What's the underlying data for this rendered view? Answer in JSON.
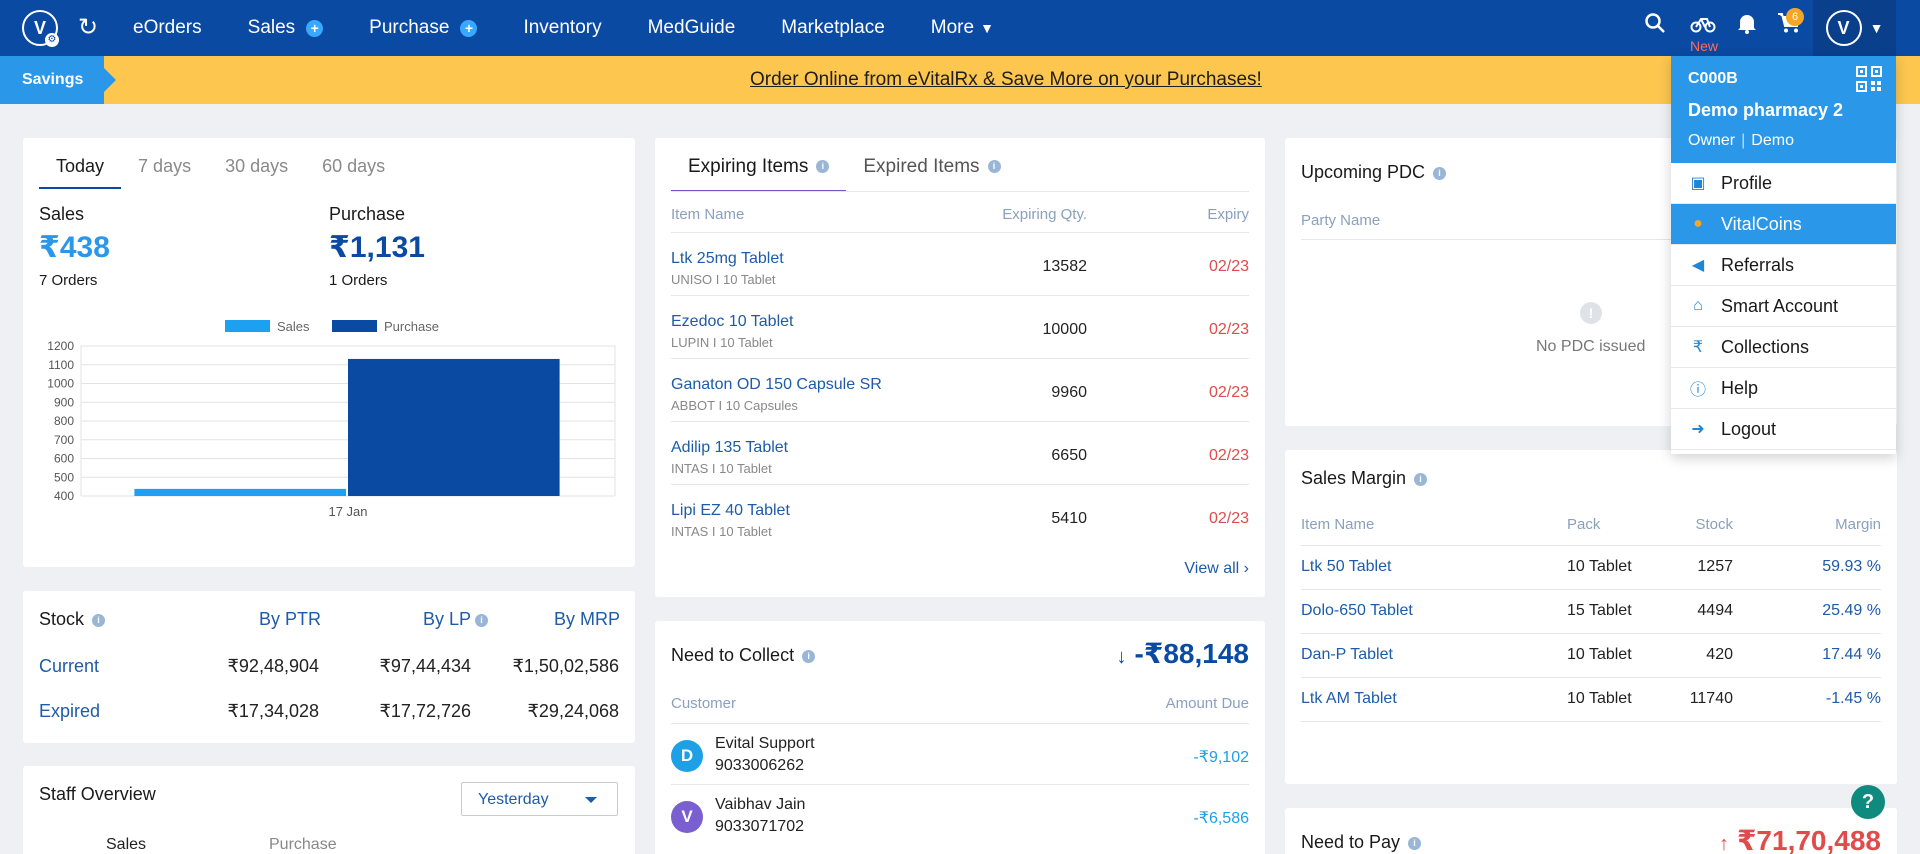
{
  "nav": {
    "logo_letter": "V",
    "menu": [
      {
        "label": "eOrders",
        "plus": false
      },
      {
        "label": "Sales",
        "plus": true
      },
      {
        "label": "Purchase",
        "plus": true
      },
      {
        "label": "Inventory",
        "plus": false
      },
      {
        "label": "MedGuide",
        "plus": false
      },
      {
        "label": "Marketplace",
        "plus": false
      },
      {
        "label": "More",
        "plus": false
      }
    ],
    "new_label": "New",
    "cart_count": "6",
    "avatar_letter": "V",
    "icons": [
      "search-icon",
      "bike-icon",
      "bell-icon",
      "cart-icon"
    ]
  },
  "banner": {
    "tag": "Savings",
    "message": "Order Online from eVitalRx & Save More on your Purchases!"
  },
  "summary": {
    "tabs": [
      "Today",
      "7 days",
      "30 days",
      "60 days"
    ],
    "active_tab": "Today",
    "sales_label": "Sales",
    "sales_value": "₹438",
    "sales_orders": "7 Orders",
    "purchase_label": "Purchase",
    "purchase_value": "₹1,131",
    "purchase_orders": "1 Orders",
    "chart_data": {
      "type": "bar",
      "categories": [
        "17 Jan"
      ],
      "series": [
        {
          "name": "Sales",
          "values": [
            438
          ],
          "color": "#1da0f0"
        },
        {
          "name": "Purchase",
          "values": [
            1131
          ],
          "color": "#0b4aa2"
        }
      ],
      "yticks": [
        400,
        500,
        600,
        700,
        800,
        900,
        1000,
        1100,
        1200
      ],
      "ylim": [
        400,
        1200
      ],
      "legend": "top",
      "grid": true
    }
  },
  "stock": {
    "title": "Stock",
    "cols": [
      "By PTR",
      "By LP",
      "By MRP"
    ],
    "rows": [
      {
        "label": "Current",
        "values": [
          "₹92,48,904",
          "₹97,44,434",
          "₹1,50,02,586"
        ]
      },
      {
        "label": "Expired",
        "values": [
          "₹17,34,028",
          "₹17,72,726",
          "₹29,24,068"
        ]
      }
    ]
  },
  "staff": {
    "title": "Staff Overview",
    "select_value": "Yesterday",
    "col1": "Sales",
    "col2": "Purchase"
  },
  "expiring": {
    "tabs": [
      "Expiring Items",
      "Expired Items"
    ],
    "headers": [
      "Item Name",
      "Expiring Qty.",
      "Expiry"
    ],
    "rows": [
      {
        "name": "Ltk 25mg Tablet",
        "sub": "UNISO  I  10 Tablet",
        "qty": "13582",
        "expiry": "02/23"
      },
      {
        "name": "Ezedoc 10 Tablet",
        "sub": "LUPIN  I  10 Tablet",
        "qty": "10000",
        "expiry": "02/23"
      },
      {
        "name": "Ganaton OD 150 Capsule SR",
        "sub": "ABBOT  I  10 Capsules",
        "qty": "9960",
        "expiry": "02/23"
      },
      {
        "name": "Adilip 135 Tablet",
        "sub": "INTAS  I  10 Tablet",
        "qty": "6650",
        "expiry": "02/23"
      },
      {
        "name": "Lipi EZ 40 Tablet",
        "sub": "INTAS  I  10 Tablet",
        "qty": "5410",
        "expiry": "02/23"
      }
    ],
    "view_all": "View all"
  },
  "collect": {
    "title": "Need to Collect",
    "total": "-₹88,148",
    "headers": [
      "Customer",
      "Amount Due"
    ],
    "rows": [
      {
        "initial": "D",
        "name": "Evital Support",
        "phone": "9033006262",
        "amount": "-₹9,102",
        "color": "#1da0e6"
      },
      {
        "initial": "V",
        "name": "Vaibhav Jain",
        "phone": "9033071702",
        "amount": "-₹6,586",
        "color": "#7a5fd1"
      }
    ]
  },
  "pdc": {
    "title": "Upcoming PDC",
    "header": "Party Name",
    "empty": "No PDC issued"
  },
  "margin": {
    "title": "Sales Margin",
    "headers": [
      "Item Name",
      "Pack",
      "Stock",
      "Margin"
    ],
    "rows": [
      {
        "name": "Ltk 50 Tablet",
        "pack": "10 Tablet",
        "stock": "1257",
        "margin": "59.93 %"
      },
      {
        "name": "Dolo-650 Tablet",
        "pack": "15 Tablet",
        "stock": "4494",
        "margin": "25.49 %"
      },
      {
        "name": "Dan-P Tablet",
        "pack": "10 Tablet",
        "stock": "420",
        "margin": "17.44 %"
      },
      {
        "name": "Ltk AM Tablet",
        "pack": "10 Tablet",
        "stock": "11740",
        "margin": "-1.45 %"
      }
    ]
  },
  "pay": {
    "title": "Need to Pay",
    "total": "₹71,70,488"
  },
  "profile_menu": {
    "code": "C000B",
    "name": "Demo pharmacy 2",
    "role": "Owner",
    "role2": "Demo",
    "items": [
      {
        "label": "Profile",
        "icon": "store-icon",
        "active": false
      },
      {
        "label": "VitalCoins",
        "icon": "coin-icon",
        "active": true
      },
      {
        "label": "Referrals",
        "icon": "megaphone-icon",
        "active": false
      },
      {
        "label": "Smart Account",
        "icon": "bank-icon",
        "active": false
      },
      {
        "label": "Collections",
        "icon": "rupee-icon",
        "active": false
      },
      {
        "label": "Help",
        "icon": "info-icon",
        "active": false
      },
      {
        "label": "Logout",
        "icon": "logout-icon",
        "active": false
      }
    ]
  }
}
